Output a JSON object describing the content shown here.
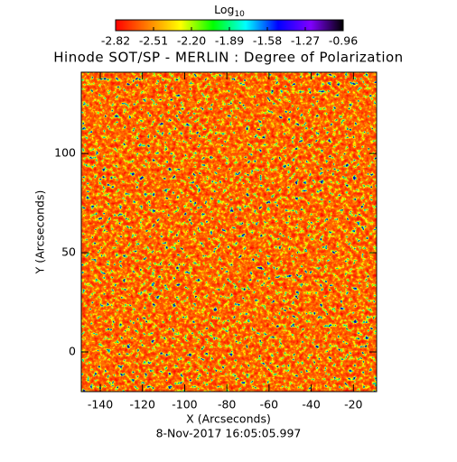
{
  "chart_data": {
    "type": "heatmap",
    "title": "Hinode SOT/SP - MERLIN : Degree of Polarization",
    "colorbar_title": "Log",
    "colorbar_title_subscript": "10",
    "colorbar_ticks": [
      -2.82,
      -2.51,
      {
        "value": -2.2,
        "label": "-2.20"
      },
      -1.89,
      -1.58,
      -1.27,
      -0.96
    ],
    "clim": [
      -2.82,
      -0.96
    ],
    "colormap": [
      "#ff0000",
      "#ff8000",
      "#ffff00",
      "#00ff00",
      "#00ffff",
      "#0000ff",
      "#8000ff",
      "#000000"
    ],
    "x_label": "X (Arcseconds)",
    "y_label": "Y (Arcseconds)",
    "xlim": [
      -149,
      -9
    ],
    "ylim": [
      -20,
      141
    ],
    "xticks": [
      -140,
      -120,
      -100,
      -80,
      -60,
      -40,
      -20
    ],
    "yticks": [
      0,
      50,
      100
    ],
    "footer": "8-Nov-2017 16:05:05.997"
  }
}
